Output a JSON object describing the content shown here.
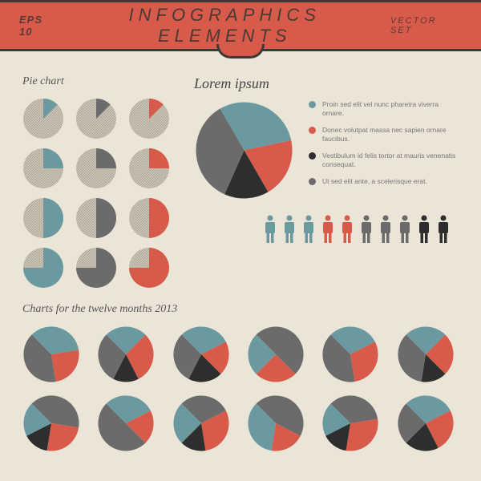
{
  "header": {
    "eps_label": "EPS 10",
    "title": "INFOGRAPHICS ELEMENTS",
    "vector_set": "VECTOR SET"
  },
  "colors": {
    "teal": "#6a9aa0",
    "red": "#d85a4a",
    "dark": "#2e2e2e",
    "gray": "#6b6b6b",
    "hatch_bg": "#cfc8ba",
    "hatch_line": "#8a8478"
  },
  "pie_small_section": {
    "label": "Pie chart",
    "pies": [
      {
        "filled_pct": 12.5,
        "color": "#6a9aa0"
      },
      {
        "filled_pct": 12.5,
        "color": "#6b6b6b"
      },
      {
        "filled_pct": 12.5,
        "color": "#d85a4a"
      },
      {
        "filled_pct": 25,
        "color": "#6a9aa0"
      },
      {
        "filled_pct": 25,
        "color": "#6b6b6b"
      },
      {
        "filled_pct": 25,
        "color": "#d85a4a"
      },
      {
        "filled_pct": 50,
        "color": "#6a9aa0"
      },
      {
        "filled_pct": 50,
        "color": "#6b6b6b"
      },
      {
        "filled_pct": 50,
        "color": "#d85a4a"
      },
      {
        "filled_pct": 75,
        "color": "#6a9aa0"
      },
      {
        "filled_pct": 75,
        "color": "#6b6b6b"
      },
      {
        "filled_pct": 75,
        "color": "#d85a4a"
      }
    ]
  },
  "big_pie": {
    "label": "Lorem ipsum",
    "slices": [
      {
        "pct": 30,
        "color": "#6a9aa0",
        "text": "Proin sed elit vel nunc pharetra viverra ornare."
      },
      {
        "pct": 20,
        "color": "#d85a4a",
        "text": "Donec volutpat massa nec sapien ornare faucibus."
      },
      {
        "pct": 15,
        "color": "#2e2e2e",
        "text": "Vestibulum id felis tortor at mauris venenatis consequat."
      },
      {
        "pct": 35,
        "color": "#6b6b6b",
        "text": "Ut sed elit ante, a scelerisque erat."
      }
    ]
  },
  "people": [
    "#6a9aa0",
    "#6a9aa0",
    "#6a9aa0",
    "#d85a4a",
    "#d85a4a",
    "#6b6b6b",
    "#6b6b6b",
    "#6b6b6b",
    "#2e2e2e",
    "#2e2e2e"
  ],
  "months_section": {
    "label": "Charts for the twelve months 2013",
    "pies": [
      {
        "slices": [
          {
            "pct": 35,
            "color": "#6a9aa0"
          },
          {
            "pct": 25,
            "color": "#d85a4a"
          },
          {
            "pct": 40,
            "color": "#6b6b6b"
          }
        ]
      },
      {
        "slices": [
          {
            "pct": 25,
            "color": "#6a9aa0"
          },
          {
            "pct": 30,
            "color": "#d85a4a"
          },
          {
            "pct": 15,
            "color": "#2e2e2e"
          },
          {
            "pct": 30,
            "color": "#6b6b6b"
          }
        ]
      },
      {
        "slices": [
          {
            "pct": 30,
            "color": "#6a9aa0"
          },
          {
            "pct": 20,
            "color": "#d85a4a"
          },
          {
            "pct": 20,
            "color": "#2e2e2e"
          },
          {
            "pct": 30,
            "color": "#6b6b6b"
          }
        ]
      },
      {
        "slices": [
          {
            "pct": 50,
            "color": "#6b6b6b"
          },
          {
            "pct": 25,
            "color": "#d85a4a"
          },
          {
            "pct": 25,
            "color": "#6a9aa0"
          }
        ]
      },
      {
        "slices": [
          {
            "pct": 30,
            "color": "#6a9aa0"
          },
          {
            "pct": 30,
            "color": "#d85a4a"
          },
          {
            "pct": 40,
            "color": "#6b6b6b"
          }
        ]
      },
      {
        "slices": [
          {
            "pct": 25,
            "color": "#6a9aa0"
          },
          {
            "pct": 25,
            "color": "#d85a4a"
          },
          {
            "pct": 15,
            "color": "#2e2e2e"
          },
          {
            "pct": 35,
            "color": "#6b6b6b"
          }
        ]
      },
      {
        "slices": [
          {
            "pct": 40,
            "color": "#6b6b6b"
          },
          {
            "pct": 25,
            "color": "#d85a4a"
          },
          {
            "pct": 15,
            "color": "#2e2e2e"
          },
          {
            "pct": 20,
            "color": "#6a9aa0"
          }
        ]
      },
      {
        "slices": [
          {
            "pct": 30,
            "color": "#6a9aa0"
          },
          {
            "pct": 20,
            "color": "#d85a4a"
          },
          {
            "pct": 50,
            "color": "#6b6b6b"
          }
        ]
      },
      {
        "slices": [
          {
            "pct": 30,
            "color": "#6b6b6b"
          },
          {
            "pct": 30,
            "color": "#d85a4a"
          },
          {
            "pct": 15,
            "color": "#2e2e2e"
          },
          {
            "pct": 25,
            "color": "#6a9aa0"
          }
        ]
      },
      {
        "slices": [
          {
            "pct": 45,
            "color": "#6b6b6b"
          },
          {
            "pct": 20,
            "color": "#d85a4a"
          },
          {
            "pct": 35,
            "color": "#6a9aa0"
          }
        ]
      },
      {
        "slices": [
          {
            "pct": 35,
            "color": "#6b6b6b"
          },
          {
            "pct": 30,
            "color": "#d85a4a"
          },
          {
            "pct": 15,
            "color": "#2e2e2e"
          },
          {
            "pct": 20,
            "color": "#6a9aa0"
          }
        ]
      },
      {
        "slices": [
          {
            "pct": 30,
            "color": "#6a9aa0"
          },
          {
            "pct": 25,
            "color": "#d85a4a"
          },
          {
            "pct": 20,
            "color": "#2e2e2e"
          },
          {
            "pct": 25,
            "color": "#6b6b6b"
          }
        ]
      }
    ]
  }
}
